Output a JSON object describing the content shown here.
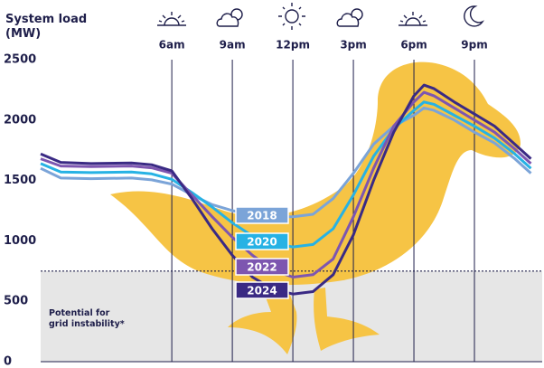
{
  "chart_data": {
    "type": "line",
    "title": "System load (MW)",
    "x": [
      -0.5,
      0.5,
      2,
      4,
      5,
      6,
      7,
      8,
      9,
      10,
      11,
      12,
      13,
      14,
      15,
      16,
      17,
      18,
      18.5,
      19,
      20,
      21,
      22,
      23,
      23.8
    ],
    "xlim": [
      -0.5,
      24
    ],
    "xticks": [
      {
        "value": 6,
        "label": "6am"
      },
      {
        "value": 9,
        "label": "9am"
      },
      {
        "value": 12,
        "label": "12pm"
      },
      {
        "value": 15,
        "label": "3pm"
      },
      {
        "value": 18,
        "label": "6pm"
      },
      {
        "value": 21,
        "label": "9pm"
      }
    ],
    "ylim": [
      0,
      2500
    ],
    "yticks": [
      0,
      500,
      1000,
      1500,
      2000,
      2500
    ],
    "grid": "x",
    "threshold": 750,
    "threshold_label": "Potential for grid instability*",
    "series": [
      {
        "name": "2018",
        "color": "#7ba4d8",
        "values": [
          1600,
          1520,
          1515,
          1520,
          1505,
          1470,
          1380,
          1300,
          1250,
          1220,
          1200,
          1200,
          1220,
          1350,
          1560,
          1800,
          1950,
          2040,
          2100,
          2080,
          2000,
          1900,
          1810,
          1680,
          1560
        ]
      },
      {
        "name": "2020",
        "color": "#27b2e4",
        "values": [
          1640,
          1570,
          1565,
          1570,
          1555,
          1510,
          1400,
          1280,
          1150,
          1040,
          980,
          950,
          970,
          1100,
          1380,
          1700,
          1930,
          2080,
          2150,
          2130,
          2040,
          1950,
          1850,
          1720,
          1600
        ]
      },
      {
        "name": "2022",
        "color": "#7d56b0",
        "values": [
          1680,
          1620,
          1615,
          1620,
          1605,
          1560,
          1380,
          1200,
          1030,
          880,
          760,
          700,
          720,
          850,
          1200,
          1600,
          1950,
          2150,
          2230,
          2200,
          2100,
          2000,
          1900,
          1760,
          1640
        ]
      },
      {
        "name": "2024",
        "color": "#3a2a84",
        "values": [
          1720,
          1650,
          1640,
          1645,
          1630,
          1580,
          1350,
          1100,
          880,
          700,
          600,
          560,
          580,
          720,
          1050,
          1500,
          1900,
          2200,
          2290,
          2260,
          2150,
          2050,
          1950,
          1800,
          1680
        ]
      }
    ]
  }
}
